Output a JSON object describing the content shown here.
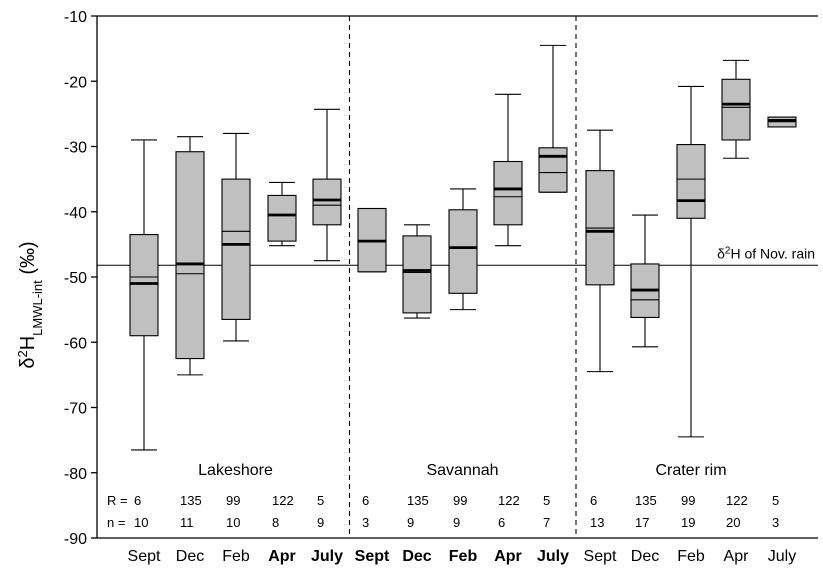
{
  "chart_data": {
    "type": "box",
    "ylabel": {
      "main": "δ",
      "sup": "2",
      "mid": "H",
      "sub": "LMWL-int",
      "tail": " (‰)"
    },
    "ylim": [
      -90,
      -10
    ],
    "yticks": [
      "-10",
      "-20",
      "-30",
      "-40",
      "-50",
      "-60",
      "-70",
      "-80",
      "-90"
    ],
    "reference_line": {
      "value": -48.2,
      "label": {
        "pre": "δ",
        "sup": "2",
        "post": "H of Nov. rain"
      }
    },
    "row_labels": {
      "r": "R =",
      "n": "n ="
    },
    "groups": [
      {
        "name": "Lakeshore",
        "boxes": [
          {
            "month": "Sept",
            "bold_label": false,
            "min": -76.5,
            "q1": -59,
            "median": -50,
            "mean": -51,
            "q3": -43.5,
            "max": -29,
            "R": "6",
            "n": "10"
          },
          {
            "month": "Dec",
            "bold_label": false,
            "min": -65,
            "q1": -62.5,
            "median": -49.5,
            "mean": -48,
            "q3": -30.8,
            "max": -28.5,
            "R": "135",
            "n": "11"
          },
          {
            "month": "Feb",
            "bold_label": false,
            "min": -59.8,
            "q1": -56.5,
            "median": -43,
            "mean": -45,
            "q3": -35,
            "max": -28,
            "R": "99",
            "n": "10"
          },
          {
            "month": "Apr",
            "bold_label": true,
            "min": -45.2,
            "q1": -44.5,
            "median": -40.5,
            "mean": -40.5,
            "q3": -37.5,
            "max": -35.5,
            "R": "122",
            "n": "8"
          },
          {
            "month": "July",
            "bold_label": true,
            "min": -47.5,
            "q1": -42,
            "median": -39,
            "mean": -38.2,
            "q3": -35,
            "max": -24.3,
            "R": "5",
            "n": "9"
          }
        ]
      },
      {
        "name": "Savannah",
        "boxes": [
          {
            "month": "Sept",
            "bold_label": true,
            "min": -49.2,
            "q1": -49.2,
            "median": -44.5,
            "mean": -44.5,
            "q3": -39.5,
            "max": -39.5,
            "R": "6",
            "n": "3"
          },
          {
            "month": "Dec",
            "bold_label": true,
            "min": -56.3,
            "q1": -55.5,
            "median": -49.3,
            "mean": -49,
            "q3": -43.7,
            "max": -42,
            "R": "135",
            "n": "9"
          },
          {
            "month": "Feb",
            "bold_label": true,
            "min": -55,
            "q1": -52.5,
            "median": -45.5,
            "mean": -45.5,
            "q3": -39.7,
            "max": -36.5,
            "R": "99",
            "n": "9"
          },
          {
            "month": "Apr",
            "bold_label": true,
            "min": -45.2,
            "q1": -42,
            "median": -37.7,
            "mean": -36.5,
            "q3": -32.3,
            "max": -22,
            "R": "122",
            "n": "6"
          },
          {
            "month": "July",
            "bold_label": true,
            "min": -37,
            "q1": -37,
            "median": -34,
            "mean": -31.5,
            "q3": -30.2,
            "max": -14.5,
            "R": "5",
            "n": "7"
          }
        ]
      },
      {
        "name": "Crater rim",
        "boxes": [
          {
            "month": "Sept",
            "bold_label": false,
            "min": -64.5,
            "q1": -51.2,
            "median": -42.5,
            "mean": -43,
            "q3": -33.7,
            "max": -27.5,
            "R": "6",
            "n": "13"
          },
          {
            "month": "Dec",
            "bold_label": false,
            "min": -60.7,
            "q1": -56.2,
            "median": -53.5,
            "mean": -52,
            "q3": -48,
            "max": -40.5,
            "R": "135",
            "n": "17"
          },
          {
            "month": "Feb",
            "bold_label": false,
            "min": -74.5,
            "q1": -41,
            "median": -35,
            "mean": -38.3,
            "q3": -29.7,
            "max": -20.8,
            "R": "99",
            "n": "19"
          },
          {
            "month": "Apr",
            "bold_label": false,
            "min": -31.8,
            "q1": -29,
            "median": -24,
            "mean": -23.5,
            "q3": -19.7,
            "max": -16.8,
            "R": "122",
            "n": "20"
          },
          {
            "month": "July",
            "bold_label": false,
            "min": -27,
            "q1": -27,
            "median": -26.2,
            "mean": -26,
            "q3": -25.5,
            "max": -25.5,
            "R": "5",
            "n": "3"
          }
        ]
      }
    ],
    "colors": {
      "box_fill": "#c0c0c0",
      "stroke": "#000000",
      "background": "#ffffff"
    }
  }
}
